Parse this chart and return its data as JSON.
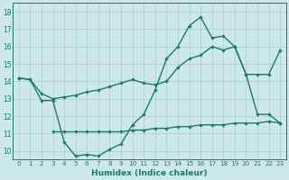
{
  "line1_x": [
    0,
    1,
    2,
    3,
    4,
    5,
    6,
    7,
    8,
    9,
    10,
    11,
    12,
    13,
    14,
    15,
    16,
    17,
    18,
    19,
    20,
    21,
    22,
    23
  ],
  "line1_y": [
    14.2,
    14.1,
    12.9,
    12.9,
    10.5,
    9.7,
    9.8,
    9.7,
    10.1,
    10.4,
    11.5,
    12.1,
    13.5,
    15.3,
    16.0,
    17.2,
    17.7,
    16.5,
    16.6,
    16.0,
    14.4,
    12.1,
    12.1,
    11.6
  ],
  "line2_x": [
    0,
    1,
    2,
    3,
    4,
    5,
    6,
    7,
    8,
    9,
    10,
    11,
    12,
    13,
    14,
    15,
    16,
    17,
    18,
    19,
    20,
    21,
    22,
    23
  ],
  "line2_y": [
    14.2,
    14.1,
    13.3,
    13.0,
    13.1,
    13.2,
    13.4,
    13.5,
    13.7,
    13.9,
    14.1,
    13.9,
    13.8,
    14.0,
    14.8,
    15.3,
    15.5,
    16.0,
    15.8,
    16.0,
    14.4,
    14.4,
    14.4,
    15.8
  ],
  "line3_x": [
    3,
    4,
    5,
    6,
    7,
    8,
    9,
    10,
    11,
    12,
    13,
    14,
    15,
    16,
    17,
    18,
    19,
    20,
    21,
    22,
    23
  ],
  "line3_y": [
    11.1,
    11.1,
    11.1,
    11.1,
    11.1,
    11.1,
    11.1,
    11.2,
    11.2,
    11.3,
    11.3,
    11.4,
    11.4,
    11.5,
    11.5,
    11.5,
    11.6,
    11.6,
    11.6,
    11.7,
    11.6
  ],
  "color": "#1a7a6e",
  "bg_color": "#cce8e8",
  "grid_color": "#aacece",
  "xlabel": "Humidex (Indice chaleur)",
  "xlim": [
    -0.5,
    23.5
  ],
  "ylim": [
    9.5,
    18.5
  ],
  "yticks": [
    10,
    11,
    12,
    13,
    14,
    15,
    16,
    17,
    18
  ],
  "xticks": [
    0,
    1,
    2,
    3,
    4,
    5,
    6,
    7,
    8,
    9,
    10,
    11,
    12,
    13,
    14,
    15,
    16,
    17,
    18,
    19,
    20,
    21,
    22,
    23
  ],
  "marker": "D",
  "markersize": 2.2,
  "linewidth": 1.0
}
